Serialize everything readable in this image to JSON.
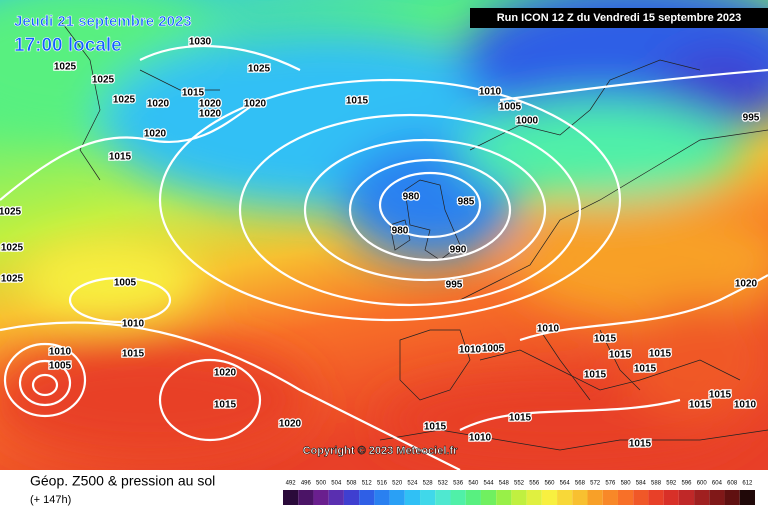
{
  "header": {
    "date": "Jeudi 21 septembre 2023",
    "time": "17:00 locale",
    "run": "Run ICON 12 Z du Vendredi 15 septembre 2023",
    "copyright": "Copyright © 2023 Meteociel.fr"
  },
  "footer": {
    "title": "Géop. Z500 & pression au sol",
    "lead": "(+ 147h)"
  },
  "scale": {
    "values": [
      492,
      496,
      500,
      504,
      508,
      512,
      516,
      520,
      524,
      528,
      532,
      536,
      540,
      544,
      548,
      552,
      556,
      560,
      564,
      568,
      572,
      576,
      580,
      584,
      588,
      592,
      596,
      600,
      604,
      608,
      612
    ],
    "colors": [
      "#2a0a3a",
      "#4b1466",
      "#6a1f8e",
      "#5a2fb0",
      "#3f3fd0",
      "#2f5fe6",
      "#2a80f0",
      "#2aa0f5",
      "#30c0f5",
      "#40d8ea",
      "#4fe8d0",
      "#50f0a8",
      "#58f080",
      "#70f060",
      "#98f048",
      "#c0f040",
      "#e0f040",
      "#f8f040",
      "#f8d838",
      "#f8c030",
      "#f8a028",
      "#f88828",
      "#f87028",
      "#f05828",
      "#e84028",
      "#d83028",
      "#c02828",
      "#a02020",
      "#801818",
      "#601010",
      "#200808"
    ]
  },
  "isobars": [
    "1030",
    "1025",
    "1025",
    "1025",
    "1020",
    "1015",
    "1020",
    "1020",
    "1020",
    "1025",
    "1020",
    "1015",
    "1015",
    "1010",
    "1005",
    "1000",
    "980",
    "985",
    "980",
    "990",
    "995",
    "1005",
    "1010",
    "1015",
    "1010",
    "1005",
    "1020",
    "1015",
    "1020",
    "1010",
    "1005",
    "1010",
    "1015",
    "1015",
    "1015",
    "1015",
    "1015",
    "1015",
    "1010",
    "1015",
    "1020",
    "995",
    "1025",
    "1025",
    "1025",
    "1015",
    "1015",
    "1010",
    "1015"
  ]
}
